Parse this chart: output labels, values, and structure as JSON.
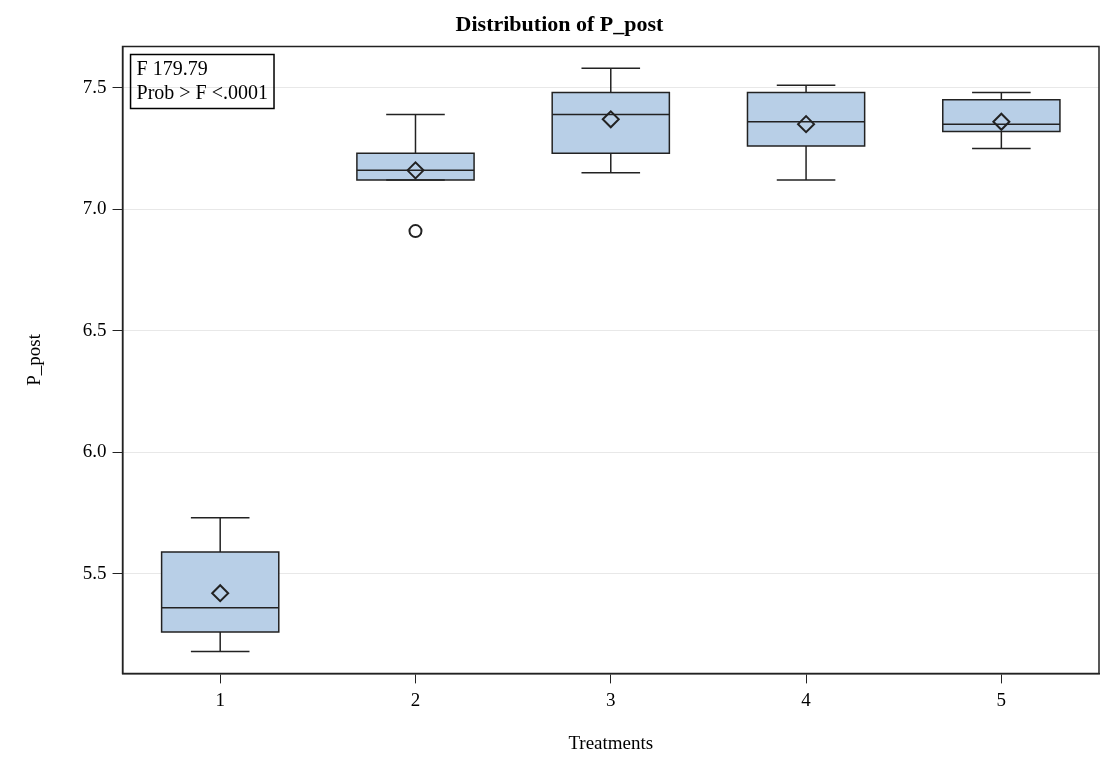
{
  "chart_data": {
    "type": "box",
    "title": "Distribution of P_post",
    "xlabel": "Treatments",
    "ylabel": "P_post",
    "categories": [
      "1",
      "2",
      "3",
      "4",
      "5"
    ],
    "color": "#b8cfe7",
    "boxes": [
      {
        "low": 5.18,
        "q1": 5.26,
        "median": 5.36,
        "q3": 5.59,
        "high": 5.73,
        "mean": 5.42
      },
      {
        "low": 7.12,
        "q1": 7.12,
        "median": 7.16,
        "q3": 7.23,
        "high": 7.39,
        "mean": 7.16,
        "outliers": [
          6.91
        ]
      },
      {
        "low": 7.15,
        "q1": 7.23,
        "median": 7.39,
        "q3": 7.48,
        "high": 7.58,
        "mean": 7.37
      },
      {
        "low": 7.12,
        "q1": 7.26,
        "median": 7.36,
        "q3": 7.48,
        "high": 7.51,
        "mean": 7.35
      },
      {
        "low": 7.25,
        "q1": 7.32,
        "median": 7.35,
        "q3": 7.45,
        "high": 7.48,
        "mean": 7.36
      }
    ],
    "ylim": [
      5.09,
      7.67
    ],
    "yticks": [
      5.5,
      {
        "value": 6,
        "label": "6.0"
      },
      6.5,
      {
        "value": 7,
        "label": "7.0"
      },
      7.5
    ],
    "grid": "y",
    "annotations": [
      "F 179.79",
      "Prob > F <.0001"
    ]
  }
}
